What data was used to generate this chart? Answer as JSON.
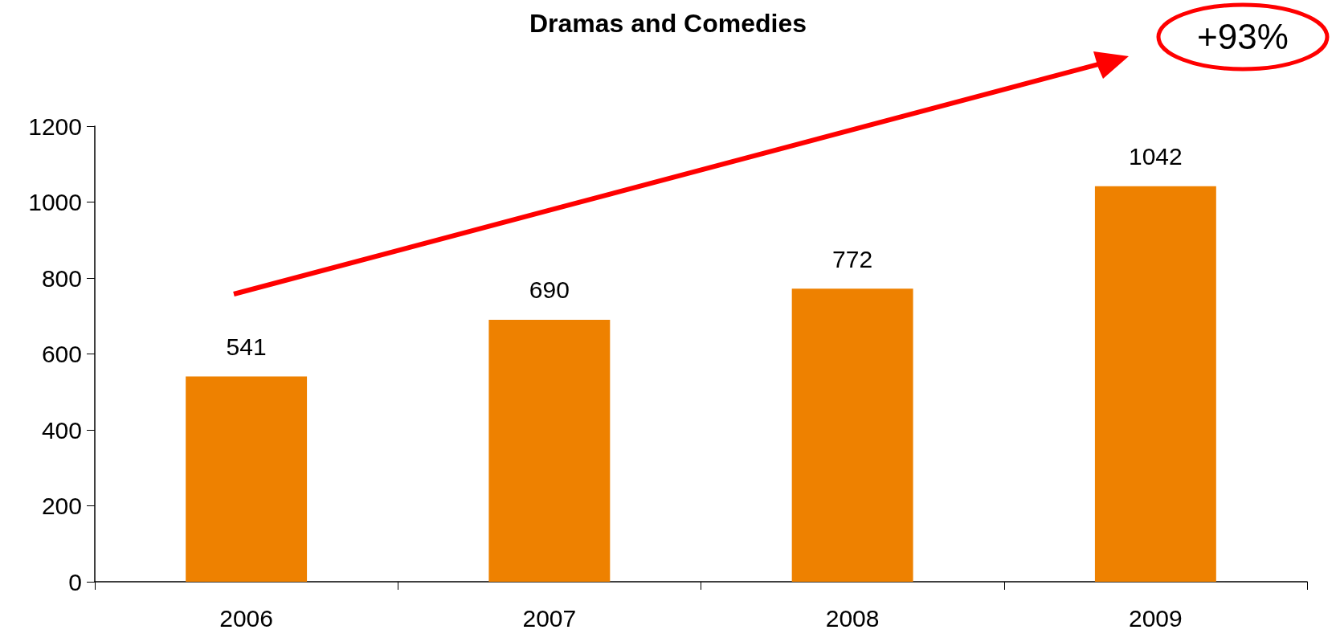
{
  "chart_data": {
    "type": "bar",
    "title": "Dramas and Comedies",
    "categories": [
      "2006",
      "2007",
      "2008",
      "2009"
    ],
    "values": [
      541,
      690,
      772,
      1042
    ],
    "color": "#ee8100",
    "ylim": [
      0,
      1200
    ],
    "yticks": [
      0,
      200,
      400,
      600,
      800,
      1000,
      1200
    ],
    "grid": false,
    "data_labels": true,
    "annotations": [
      "+93%"
    ]
  }
}
